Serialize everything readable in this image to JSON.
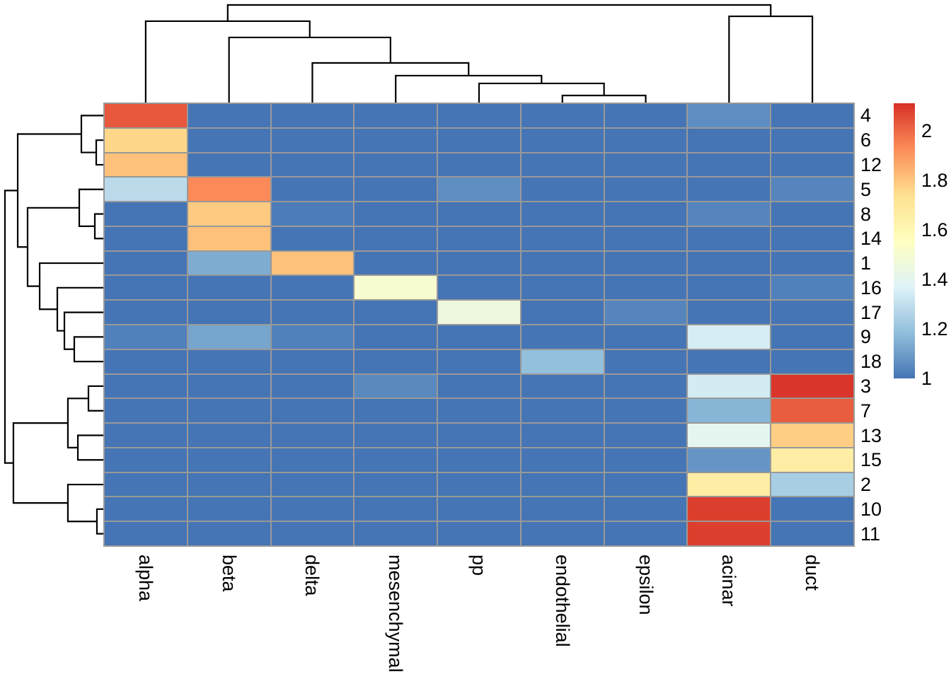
{
  "chart_data": {
    "type": "heatmap",
    "title": "",
    "columns": [
      "alpha",
      "beta",
      "delta",
      "mesenchymal",
      "pp",
      "endothelial",
      "epsilon",
      "acinar",
      "duct"
    ],
    "rows": [
      "4",
      "6",
      "12",
      "5",
      "8",
      "14",
      "1",
      "16",
      "17",
      "9",
      "18",
      "3",
      "7",
      "13",
      "15",
      "2",
      "10",
      "11"
    ],
    "matrix": [
      [
        2.03,
        1,
        1,
        1,
        1,
        1,
        1,
        1.06,
        1
      ],
      [
        1.76,
        1,
        1,
        1,
        1,
        1,
        1,
        1,
        1
      ],
      [
        1.81,
        1,
        1,
        1,
        1,
        1,
        1,
        1,
        1
      ],
      [
        1.28,
        1.93,
        1,
        1,
        1.06,
        1,
        1,
        1,
        1.04
      ],
      [
        1,
        1.79,
        1.02,
        1,
        1,
        1,
        1,
        1.04,
        1
      ],
      [
        1,
        1.81,
        1,
        1,
        1,
        1,
        1,
        1,
        1
      ],
      [
        1,
        1.14,
        1.81,
        1,
        1,
        1,
        1,
        1,
        1
      ],
      [
        1,
        1,
        1,
        1.5,
        1,
        1,
        1,
        1,
        1.03
      ],
      [
        1,
        1,
        1,
        1,
        1.45,
        1,
        1.04,
        1,
        1
      ],
      [
        1.03,
        1.12,
        1.03,
        1,
        1,
        1,
        1,
        1.35,
        1
      ],
      [
        1,
        1,
        1,
        1,
        1,
        1.19,
        1,
        1,
        1
      ],
      [
        1,
        1,
        1,
        1.05,
        1,
        1,
        1,
        1.34,
        2.1
      ],
      [
        1,
        1,
        1,
        1,
        1,
        1,
        1,
        1.16,
        2.02
      ],
      [
        1,
        1,
        1,
        1,
        1,
        1,
        1,
        1.4,
        1.78
      ],
      [
        1,
        1,
        1,
        1,
        1,
        1,
        1,
        1.08,
        1.66
      ],
      [
        1,
        1,
        1,
        1,
        1,
        1,
        1,
        1.66,
        1.24
      ],
      [
        1,
        1,
        1,
        1,
        1,
        1,
        1,
        2.08,
        1
      ],
      [
        1,
        1,
        1,
        1,
        1,
        1,
        1,
        2.08,
        1
      ]
    ],
    "color_scale": {
      "palette": [
        "#4575B4",
        "#91BFDB",
        "#E0F3F8",
        "#FFFFBF",
        "#FEE090",
        "#FC8D59",
        "#D73027"
      ],
      "domain": [
        1,
        2.11
      ],
      "legend_ticks": [
        {
          "label": "2",
          "value": 2
        },
        {
          "label": "1.8",
          "value": 1.8
        },
        {
          "label": "1.6",
          "value": 1.6
        },
        {
          "label": "1.4",
          "value": 1.4
        },
        {
          "label": "1.2",
          "value": 1.2
        },
        {
          "label": "1",
          "value": 1
        }
      ]
    },
    "col_dendrogram": {
      "h": 0.986,
      "c": [
        {
          "h": 0.823,
          "c": [
            "alpha",
            {
              "h": 0.66,
              "c": [
                "beta",
                {
                  "h": 0.404,
                  "c": [
                    "delta",
                    {
                      "h": 0.277,
                      "c": [
                        "mesenchymal",
                        {
                          "h": 0.199,
                          "c": [
                            "pp",
                            {
                              "h": 0.078,
                              "c": [
                                "endothelial",
                                "epsilon"
                              ]
                            }
                          ]
                        }
                      ]
                    }
                  ]
                }
              ]
            }
          ]
        },
        {
          "h": 0.872,
          "c": [
            "acinar",
            "duct"
          ]
        }
      ]
    },
    "row_dendrogram": {
      "h": 0.986,
      "c": [
        {
          "h": 0.858,
          "c": [
            {
              "h": 0.22,
              "c": [
                "4",
                {
                  "h": 0.071,
                  "c": [
                    "6",
                    "12"
                  ]
                }
              ]
            },
            {
              "h": 0.759,
              "c": [
                {
                  "h": 0.241,
                  "c": [
                    "5",
                    {
                      "h": 0.085,
                      "c": [
                        "8",
                        "14"
                      ]
                    }
                  ]
                },
                {
                  "h": 0.638,
                  "c": [
                    "1",
                    {
                      "h": 0.461,
                      "c": [
                        "16",
                        {
                          "h": 0.39,
                          "c": [
                            "17",
                            {
                              "h": 0.291,
                              "c": [
                                "9",
                                "18"
                              ]
                            }
                          ]
                        }
                      ]
                    }
                  ]
                }
              ]
            }
          ]
        },
        {
          "h": 0.901,
          "c": [
            {
              "h": 0.355,
              "c": [
                {
                  "h": 0.149,
                  "c": [
                    "3",
                    "7"
                  ]
                },
                {
                  "h": 0.255,
                  "c": [
                    "13",
                    "15"
                  ]
                }
              ]
            },
            {
              "h": 0.355,
              "c": [
                "2",
                {
                  "h": 0.064,
                  "c": [
                    "10",
                    "11"
                  ]
                }
              ]
            }
          ]
        }
      ]
    },
    "colors": {
      "grid": "#999999",
      "dendrogram": "#000000",
      "background": "#ffffff",
      "label_text": "#000000"
    }
  }
}
